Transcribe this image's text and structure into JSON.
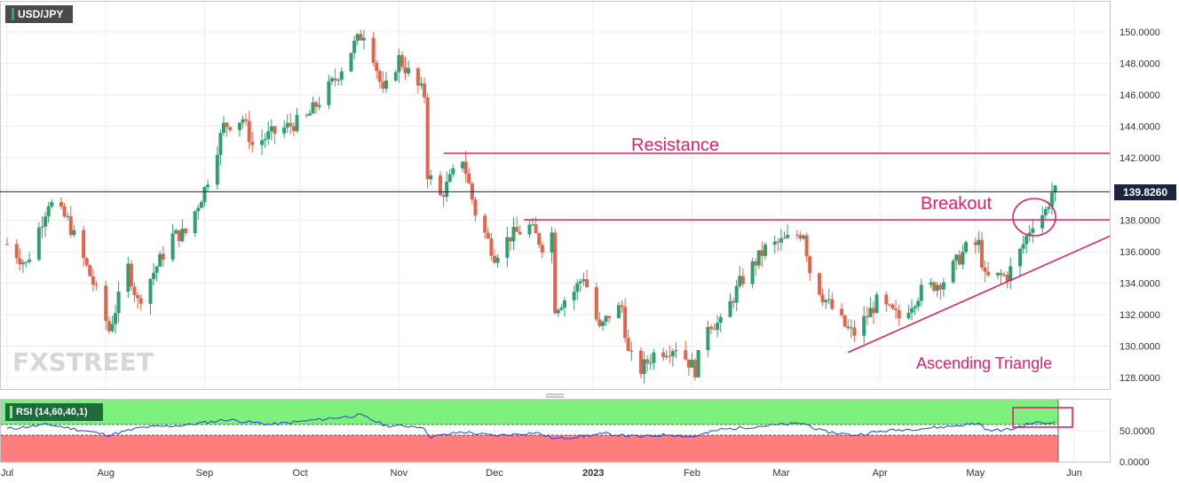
{
  "symbol": "USD/JPY",
  "current_price_label": "139.8260",
  "watermark": "FXSTREET",
  "rsi_label": "RSI (14,60,40,1)",
  "colors": {
    "bull": "#2e9f6e",
    "bear": "#e0654f",
    "annotation": "#e0206a",
    "rsi_upper_zone": "#7ef07e",
    "rsi_lower_zone": "#ff7d7d",
    "rsi_line": "#2a3fcf",
    "price_line": "#1a2540"
  },
  "annotations": {
    "resistance": "Resistance",
    "breakout": "Breakout",
    "triangle": "Ascending Triangle"
  },
  "chart_data": [
    {
      "type": "candlestick",
      "title": "USD/JPY",
      "x_tick_labels": [
        "Jul",
        "Aug",
        "Sep",
        "Oct",
        "Nov",
        "Dec",
        "2023",
        "Feb",
        "Mar",
        "Apr",
        "May",
        "Jun"
      ],
      "y_tick_labels": [
        "150.0000",
        "148.0000",
        "146.0000",
        "144.0000",
        "142.0000",
        "140.0000",
        "138.0000",
        "136.0000",
        "134.0000",
        "132.0000",
        "130.0000",
        "128.0000"
      ],
      "ylim": [
        127.2,
        152.0
      ],
      "last_price": 139.826,
      "resistance_level": 142.3,
      "breakout_level": 138.1,
      "trendline": {
        "start": [
          "2023-03-22",
          129.6
        ],
        "end": [
          "2023-06-01",
          137.0
        ]
      },
      "anchors": [
        [
          "2022-07-01",
          136.5
        ],
        [
          "2022-07-07",
          135.2
        ],
        [
          "2022-07-14",
          139.2
        ],
        [
          "2022-07-20",
          138.0
        ],
        [
          "2022-07-28",
          134.0
        ],
        [
          "2022-08-02",
          131.0
        ],
        [
          "2022-08-08",
          135.0
        ],
        [
          "2022-08-11",
          132.8
        ],
        [
          "2022-08-22",
          137.0
        ],
        [
          "2022-08-26",
          137.2
        ],
        [
          "2022-09-01",
          140.0
        ],
        [
          "2022-09-07",
          144.0
        ],
        [
          "2022-09-13",
          144.5
        ],
        [
          "2022-09-16",
          142.8
        ],
        [
          "2022-09-22",
          143.5
        ],
        [
          "2022-10-03",
          144.5
        ],
        [
          "2022-10-12",
          147.0
        ],
        [
          "2022-10-18",
          149.2
        ],
        [
          "2022-10-21",
          150.0
        ],
        [
          "2022-10-24",
          148.5
        ],
        [
          "2022-10-27",
          146.0
        ],
        [
          "2022-11-01",
          148.3
        ],
        [
          "2022-11-07",
          146.5
        ],
        [
          "2022-11-09",
          146.0
        ],
        [
          "2022-11-10",
          141.0
        ],
        [
          "2022-11-14",
          139.5
        ],
        [
          "2022-11-21",
          142.0
        ],
        [
          "2022-11-25",
          138.5
        ],
        [
          "2022-12-01",
          135.8
        ],
        [
          "2022-12-06",
          137.0
        ],
        [
          "2022-12-12",
          137.6
        ],
        [
          "2022-12-16",
          136.4
        ],
        [
          "2022-12-19",
          137.2
        ],
        [
          "2022-12-20",
          132.5
        ],
        [
          "2022-12-26",
          133.5
        ],
        [
          "2022-12-29",
          134.5
        ],
        [
          "2023-01-03",
          131.0
        ],
        [
          "2023-01-06",
          132.0
        ],
        [
          "2023-01-10",
          132.5
        ],
        [
          "2023-01-12",
          129.5
        ],
        [
          "2023-01-16",
          128.5
        ],
        [
          "2023-01-20",
          129.5
        ],
        [
          "2023-01-27",
          130.0
        ],
        [
          "2023-02-02",
          128.5
        ],
        [
          "2023-02-06",
          131.5
        ],
        [
          "2023-02-10",
          131.4
        ],
        [
          "2023-02-16",
          134.0
        ],
        [
          "2023-02-24",
          136.2
        ],
        [
          "2023-03-02",
          136.7
        ],
        [
          "2023-03-08",
          137.3
        ],
        [
          "2023-03-10",
          134.8
        ],
        [
          "2023-03-14",
          133.2
        ],
        [
          "2023-03-22",
          131.0
        ],
        [
          "2023-03-24",
          130.8
        ],
        [
          "2023-03-31",
          132.8
        ],
        [
          "2023-04-07",
          131.8
        ],
        [
          "2023-04-14",
          133.5
        ],
        [
          "2023-04-21",
          134.2
        ],
        [
          "2023-04-28",
          136.2
        ],
        [
          "2023-05-02",
          136.5
        ],
        [
          "2023-05-04",
          134.3
        ],
        [
          "2023-05-11",
          134.5
        ],
        [
          "2023-05-15",
          136.0
        ],
        [
          "2023-05-19",
          137.9
        ],
        [
          "2023-05-23",
          138.6
        ],
        [
          "2023-05-25",
          139.8
        ],
        [
          "2023-05-26",
          139.8
        ]
      ]
    },
    {
      "type": "line",
      "title": "RSI (14,60,40,1)",
      "y_tick_labels": [
        "50.0000",
        "0.0000"
      ],
      "ylim": [
        0,
        100
      ],
      "upper_level": 60,
      "lower_level": 40,
      "anchors": [
        [
          "2022-07-01",
          53
        ],
        [
          "2022-07-14",
          60
        ],
        [
          "2022-08-02",
          43
        ],
        [
          "2022-08-12",
          55
        ],
        [
          "2022-08-26",
          59
        ],
        [
          "2022-09-08",
          68
        ],
        [
          "2022-09-22",
          60
        ],
        [
          "2022-10-20",
          75
        ],
        [
          "2022-10-28",
          58
        ],
        [
          "2022-11-08",
          57
        ],
        [
          "2022-11-11",
          40
        ],
        [
          "2022-11-21",
          48
        ],
        [
          "2022-12-01",
          42
        ],
        [
          "2022-12-14",
          47
        ],
        [
          "2022-12-20",
          37
        ],
        [
          "2023-01-05",
          45
        ],
        [
          "2023-01-16",
          40
        ],
        [
          "2023-01-25",
          44
        ],
        [
          "2023-02-01",
          40
        ],
        [
          "2023-02-10",
          52
        ],
        [
          "2023-02-24",
          58
        ],
        [
          "2023-03-08",
          62
        ],
        [
          "2023-03-14",
          49
        ],
        [
          "2023-03-24",
          43
        ],
        [
          "2023-04-03",
          50
        ],
        [
          "2023-04-21",
          56
        ],
        [
          "2023-05-02",
          62
        ],
        [
          "2023-05-05",
          50
        ],
        [
          "2023-05-12",
          52
        ],
        [
          "2023-05-19",
          63
        ],
        [
          "2023-05-24",
          62
        ],
        [
          "2023-05-26",
          67
        ]
      ]
    }
  ]
}
